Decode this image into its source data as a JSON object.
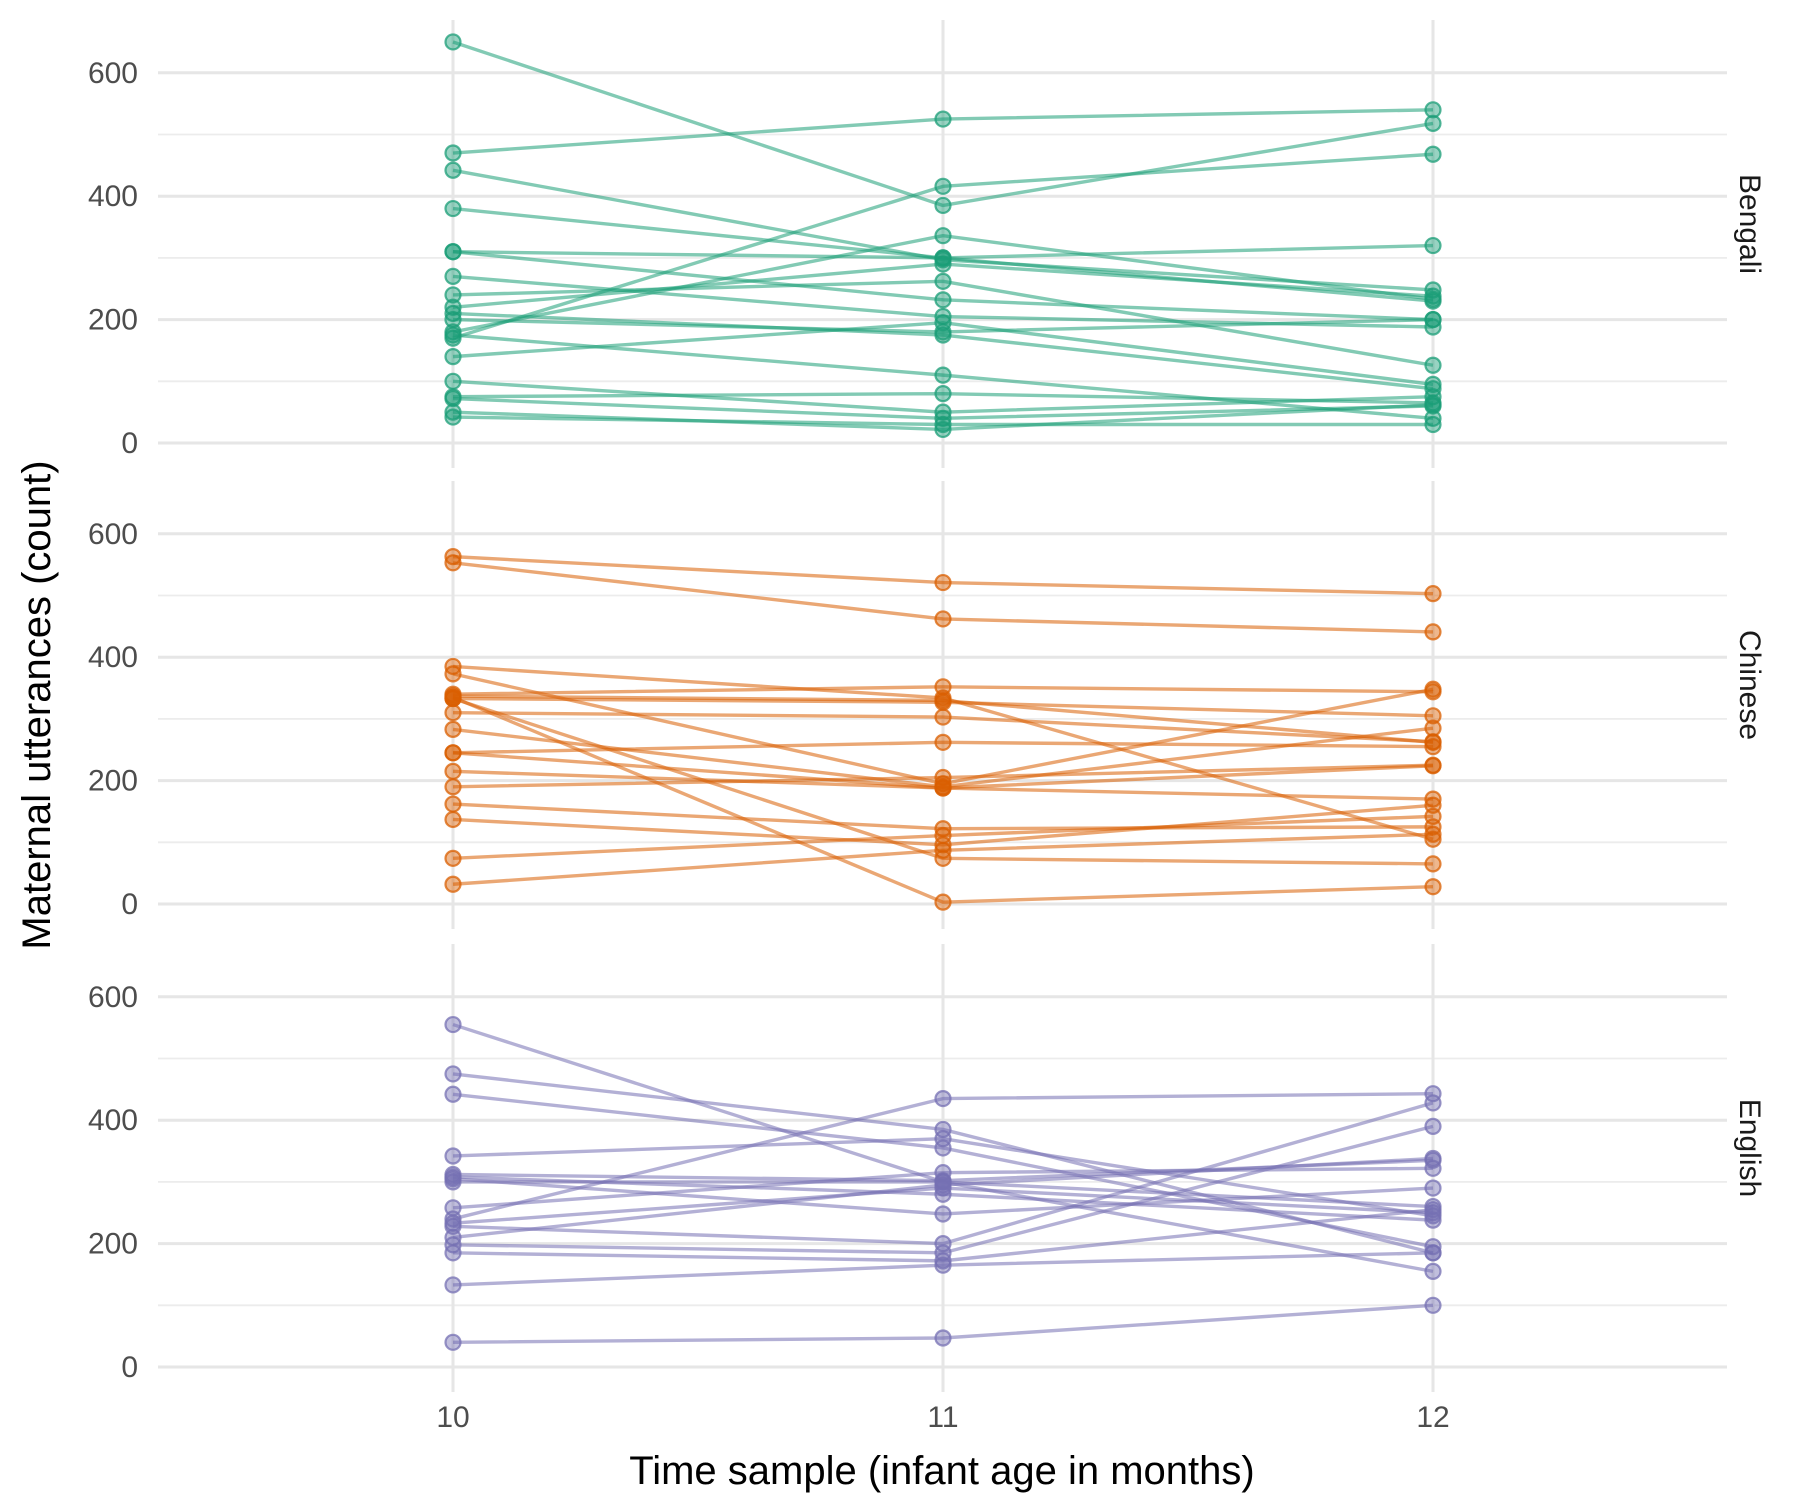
{
  "chart_data": {
    "type": "line",
    "xlabel": "Time sample (infant age in months)",
    "ylabel": "Maternal utterances (count)",
    "x": [
      10,
      11,
      12
    ],
    "x_ticks": [
      "10",
      "11",
      "12"
    ],
    "xlim": [
      9.4,
      12.6
    ],
    "ylim": [
      -25,
      675
    ],
    "y_ticks": [
      0,
      200,
      400,
      600
    ],
    "y_tick_labels": [
      "0",
      "200",
      "400",
      "600"
    ],
    "grid": true,
    "points": true,
    "facets": [
      {
        "label": "Bengali",
        "color": "#1b9e77",
        "lines": [
          [
            650,
            385,
            518
          ],
          [
            470,
            525,
            540
          ],
          [
            442,
            297,
            248
          ],
          [
            380,
            300,
            230
          ],
          [
            310,
            300,
            320
          ],
          [
            310,
            232,
            200
          ],
          [
            270,
            205,
            188
          ],
          [
            240,
            262,
            126
          ],
          [
            220,
            290,
            238
          ],
          [
            210,
            175,
            88
          ],
          [
            200,
            180,
            200
          ],
          [
            180,
            336,
            233
          ],
          [
            175,
            110,
            40
          ],
          [
            170,
            416,
            468
          ],
          [
            140,
            195,
            95
          ],
          [
            100,
            50,
            75
          ],
          [
            75,
            80,
            65
          ],
          [
            72,
            40,
            60
          ],
          [
            50,
            22,
            62
          ],
          [
            42,
            30,
            30
          ]
        ]
      },
      {
        "label": "Chinese",
        "color": "#d95f02",
        "lines": [
          [
            563,
            521,
            503
          ],
          [
            553,
            462,
            441
          ],
          [
            385,
            334,
            105
          ],
          [
            373,
            195,
            348
          ],
          [
            340,
            352,
            344
          ],
          [
            337,
            330,
            262
          ],
          [
            333,
            327,
            305
          ],
          [
            310,
            303,
            263
          ],
          [
            283,
            190,
            285
          ],
          [
            245,
            262,
            255
          ],
          [
            245,
            188,
            224
          ],
          [
            215,
            188,
            170
          ],
          [
            190,
            205,
            225
          ],
          [
            162,
            122,
            125
          ],
          [
            137,
            96,
            160
          ],
          [
            74,
            111,
            142
          ],
          [
            32,
            87,
            113
          ],
          [
            335,
            3,
            28
          ],
          [
            333,
            74,
            65
          ]
        ]
      },
      {
        "label": "English",
        "color": "#7570b3",
        "lines": [
          [
            555,
            300,
            260
          ],
          [
            475,
            385,
            185
          ],
          [
            442,
            355,
            195
          ],
          [
            342,
            370,
            245
          ],
          [
            312,
            302,
            335
          ],
          [
            308,
            280,
            238
          ],
          [
            305,
            248,
            290
          ],
          [
            300,
            300,
            155
          ],
          [
            258,
            315,
            322
          ],
          [
            240,
            435,
            443
          ],
          [
            233,
            290,
            250
          ],
          [
            228,
            200,
            428
          ],
          [
            210,
            295,
            338
          ],
          [
            198,
            185,
            390
          ],
          [
            185,
            172,
            255
          ],
          [
            133,
            165,
            185
          ],
          [
            40,
            47,
            100
          ]
        ]
      }
    ]
  }
}
